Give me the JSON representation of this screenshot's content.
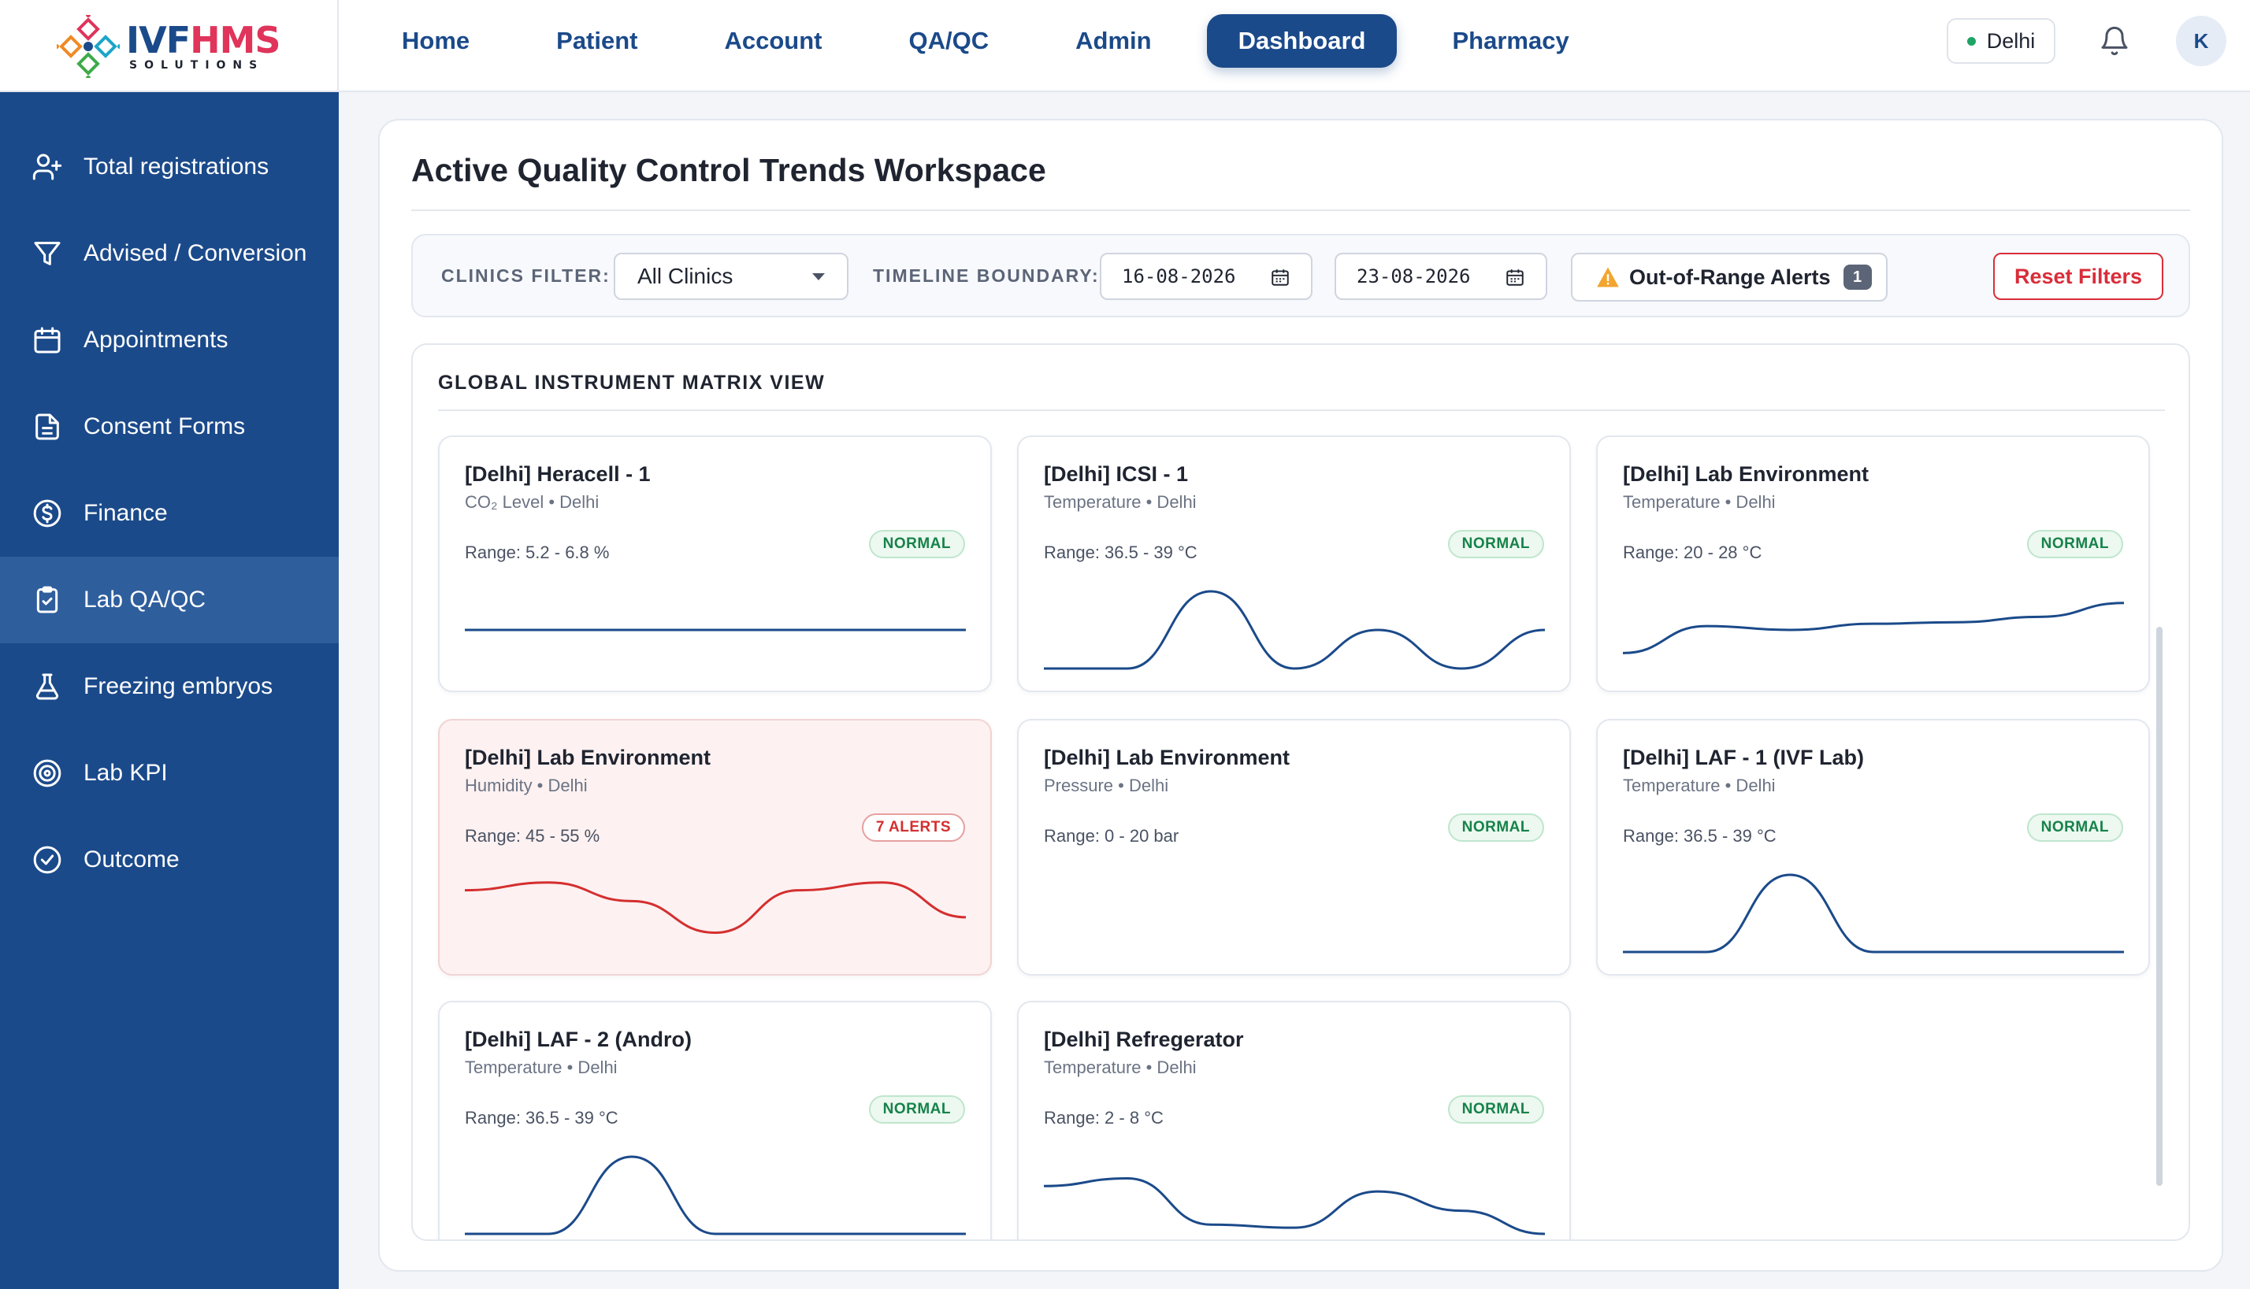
{
  "brand": {
    "word_a": "IVF",
    "word_b": "HMS",
    "subtitle": "SOLUTIONS"
  },
  "nav": {
    "items": [
      {
        "label": "Home",
        "active": false
      },
      {
        "label": "Patient",
        "active": false
      },
      {
        "label": "Account",
        "active": false
      },
      {
        "label": "QA/QC",
        "active": false
      },
      {
        "label": "Admin",
        "active": false
      },
      {
        "label": "Dashboard",
        "active": true
      },
      {
        "label": "Pharmacy",
        "active": false
      }
    ],
    "location": "Delhi",
    "avatar_initial": "K"
  },
  "sidebar": {
    "items": [
      {
        "label": "Total registrations",
        "icon": "user-plus-icon"
      },
      {
        "label": "Advised / Conversion",
        "icon": "funnel-icon"
      },
      {
        "label": "Appointments",
        "icon": "calendar-icon"
      },
      {
        "label": "Consent Forms",
        "icon": "document-icon"
      },
      {
        "label": "Finance",
        "icon": "dollar-circle-icon"
      },
      {
        "label": "Lab QA/QC",
        "icon": "clipboard-check-icon",
        "active": true
      },
      {
        "label": "Freezing embryos",
        "icon": "flask-icon"
      },
      {
        "label": "Lab KPI",
        "icon": "target-icon"
      },
      {
        "label": "Outcome",
        "icon": "check-circle-icon"
      }
    ]
  },
  "page": {
    "title": "Active Quality Control Trends Workspace"
  },
  "filters": {
    "clinics_label": "CLINICS FILTER:",
    "clinics_value": "All Clinics",
    "timeline_label": "TIMELINE BOUNDARY:",
    "date_from": "16-08-2026",
    "date_to": "23-08-2026",
    "alerts_label": "Out-of-Range Alerts",
    "alerts_count": "1",
    "reset_label": "Reset Filters"
  },
  "matrix": {
    "title": "GLOBAL INSTRUMENT MATRIX VIEW",
    "cards": [
      {
        "title": "[Delhi] Heracell - 1",
        "subtitle": "CO₂ Level • Delhi",
        "range": "Range: 5.2 - 6.8 %",
        "badge": "NORMAL",
        "status": "normal",
        "trend": [
          0.5,
          0.5,
          0.5,
          0.5,
          0.5,
          0.5,
          0.5
        ]
      },
      {
        "title": "[Delhi] ICSI - 1",
        "subtitle": "Temperature • Delhi",
        "range": "Range: 36.5 - 39 °C",
        "badge": "NORMAL",
        "status": "normal",
        "trend": [
          0.0,
          0.0,
          1.0,
          0.0,
          0.5,
          0.0,
          0.5
        ]
      },
      {
        "title": "[Delhi] Lab Environment",
        "subtitle": "Temperature • Delhi",
        "range": "Range: 20 - 28 °C",
        "badge": "NORMAL",
        "status": "normal",
        "trend": [
          0.2,
          0.55,
          0.5,
          0.58,
          0.6,
          0.67,
          0.85
        ]
      },
      {
        "title": "[Delhi] Lab Environment",
        "subtitle": "Humidity • Delhi",
        "range": "Range: 45 - 55 %",
        "badge": "7 ALERTS",
        "status": "alert",
        "trend": [
          0.8,
          0.9,
          0.66,
          0.25,
          0.8,
          0.9,
          0.45
        ]
      },
      {
        "title": "[Delhi] Lab Environment",
        "subtitle": "Pressure • Delhi",
        "range": "Range: 0 - 20 bar",
        "badge": "NORMAL",
        "status": "normal",
        "trend": []
      },
      {
        "title": "[Delhi] LAF - 1 (IVF Lab)",
        "subtitle": "Temperature • Delhi",
        "range": "Range: 36.5 - 39 °C",
        "badge": "NORMAL",
        "status": "normal",
        "trend": [
          0.0,
          0.0,
          1.0,
          0.0,
          0.0,
          0.0,
          0.0
        ]
      },
      {
        "title": "[Delhi] LAF - 2 (Andro)",
        "subtitle": "Temperature • Delhi",
        "range": "Range: 36.5 - 39 °C",
        "badge": "NORMAL",
        "status": "normal",
        "trend": [
          0.0,
          0.0,
          1.0,
          0.0,
          0.0,
          0.0,
          0.0
        ]
      },
      {
        "title": "[Delhi] Refregerator",
        "subtitle": "Temperature • Delhi",
        "range": "Range: 2 - 8 °C",
        "badge": "NORMAL",
        "status": "normal",
        "trend": [
          0.62,
          0.72,
          0.12,
          0.08,
          0.55,
          0.3,
          0.0
        ]
      }
    ]
  },
  "colors": {
    "brand_blue": "#1b4a8a",
    "alert_red": "#d42f2f",
    "normal_green": "#17824a"
  }
}
